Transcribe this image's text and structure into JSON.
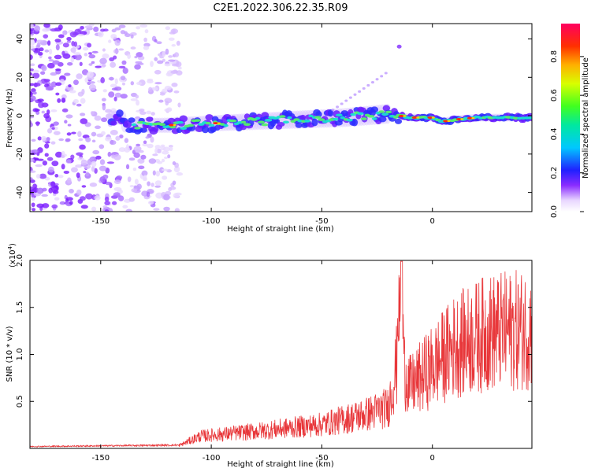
{
  "title": "C2E1.2022.306.22.35.R09",
  "chart_data": [
    {
      "type": "heatmap",
      "xlabel": "Height of straight line (km)",
      "ylabel": "Frequency (Hz)",
      "xlim": [
        -182,
        45
      ],
      "ylim": [
        -50,
        48
      ],
      "x_ticks": [
        -150,
        -100,
        -50,
        0
      ],
      "y_ticks": [
        -40,
        -20,
        0,
        20,
        40
      ],
      "colorbar": {
        "label": "Normalized spectral amplitude",
        "range": [
          0,
          0.97
        ],
        "ticks": [
          0.0,
          0.2,
          0.4,
          0.6,
          0.8
        ]
      },
      "band_centerline": [
        {
          "x": -140,
          "y": -5
        },
        {
          "x": -120,
          "y": -5
        },
        {
          "x": -100,
          "y": -4
        },
        {
          "x": -80,
          "y": -3
        },
        {
          "x": -60,
          "y": -2
        },
        {
          "x": -40,
          "y": -1
        },
        {
          "x": -20,
          "y": 1
        },
        {
          "x": -10,
          "y": -1
        },
        {
          "x": 0,
          "y": -1
        },
        {
          "x": 5,
          "y": -3
        },
        {
          "x": 10,
          "y": -2
        },
        {
          "x": 20,
          "y": -1
        },
        {
          "x": 45,
          "y": -1
        }
      ]
    },
    {
      "type": "line",
      "xlabel": "Height of straight line (km)",
      "ylabel": "SNR (10 * v/v)",
      "y_scale_label": "(x10",
      "y_scale_exp": "4",
      "y_scale_close": ")",
      "xlim": [
        -182,
        45
      ],
      "ylim": [
        0,
        20000
      ],
      "x_ticks": [
        -150,
        -100,
        -50,
        0
      ],
      "y_ticks": [
        5000,
        10000,
        15000,
        20000
      ],
      "y_tick_labels": [
        "0.5",
        "1.0",
        "1.5",
        "2.0"
      ],
      "color": "#e8373a",
      "envelope": [
        {
          "x": -182,
          "y": 200
        },
        {
          "x": -115,
          "y": 350
        },
        {
          "x": -105,
          "y": 1800
        },
        {
          "x": -80,
          "y": 2500
        },
        {
          "x": -50,
          "y": 3500
        },
        {
          "x": -30,
          "y": 5000
        },
        {
          "x": -20,
          "y": 6000
        },
        {
          "x": -15,
          "y": 14000
        },
        {
          "x": -10,
          "y": 9000
        },
        {
          "x": 0,
          "y": 12000
        },
        {
          "x": 10,
          "y": 15000
        },
        {
          "x": 25,
          "y": 17000
        },
        {
          "x": 45,
          "y": 17500
        }
      ]
    }
  ]
}
